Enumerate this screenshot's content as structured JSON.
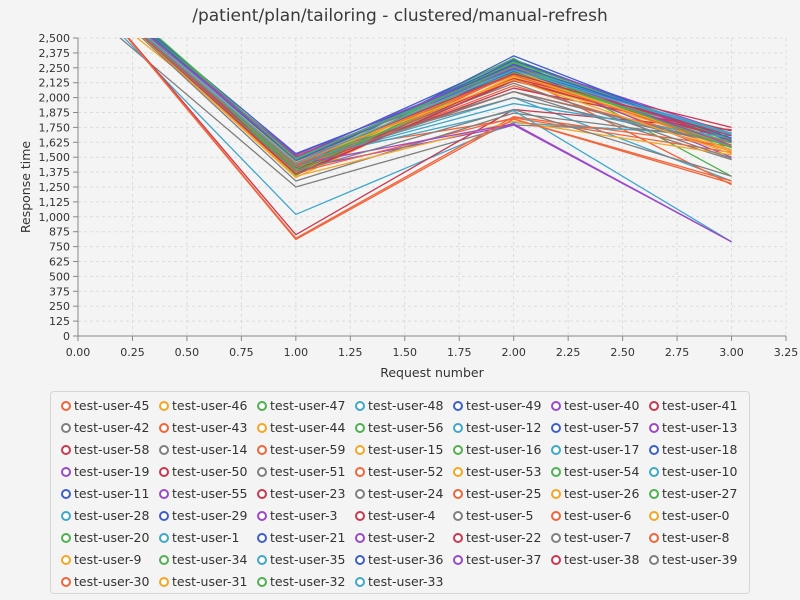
{
  "chart_data": {
    "type": "line",
    "title": "/patient/plan/tailoring - clustered/manual-refresh",
    "xlabel": "Request number",
    "ylabel": "Response time",
    "xlim": [
      0,
      3.25
    ],
    "ylim": [
      0,
      2500
    ],
    "x_ticks": [
      "0.00",
      "0.25",
      "0.50",
      "0.75",
      "1.00",
      "1.25",
      "1.50",
      "1.75",
      "2.00",
      "2.25",
      "2.50",
      "2.75",
      "3.00",
      "3.25"
    ],
    "y_ticks": [
      "0",
      "125",
      "250",
      "375",
      "500",
      "625",
      "750",
      "875",
      "1,000",
      "1,125",
      "1,250",
      "1,375",
      "1,500",
      "1,625",
      "1,750",
      "1,875",
      "2,000",
      "2,125",
      "2,250",
      "2,375",
      "2,500"
    ],
    "grid": true,
    "legend_placement": "bottom",
    "x": [
      0,
      1,
      2,
      3
    ],
    "series": [
      {
        "name": "test-user-45",
        "color": "#f2643a",
        "values": [
          3000,
          1400,
          2100,
          1550
        ]
      },
      {
        "name": "test-user-46",
        "color": "#f5a623",
        "values": [
          2900,
          1430,
          2150,
          1600
        ]
      },
      {
        "name": "test-user-47",
        "color": "#4fb04f",
        "values": [
          3100,
          1380,
          2280,
          1600
        ]
      },
      {
        "name": "test-user-48",
        "color": "#3fa7c9",
        "values": [
          3000,
          1450,
          2000,
          1300
        ]
      },
      {
        "name": "test-user-49",
        "color": "#3d5fc9",
        "values": [
          3050,
          1500,
          2320,
          1650
        ]
      },
      {
        "name": "test-user-40",
        "color": "#9b48c9",
        "values": [
          3000,
          1470,
          2300,
          1700
        ]
      },
      {
        "name": "test-user-41",
        "color": "#c9384f",
        "values": [
          2950,
          1510,
          2200,
          1750
        ]
      },
      {
        "name": "test-user-42",
        "color": "#7f7f7f",
        "values": [
          2800,
          1250,
          1770,
          1700
        ]
      },
      {
        "name": "test-user-43",
        "color": "#f2643a",
        "values": [
          3000,
          1360,
          2200,
          1270
        ]
      },
      {
        "name": "test-user-44",
        "color": "#f5a623",
        "values": [
          3000,
          1330,
          2180,
          1550
        ]
      },
      {
        "name": "test-user-56",
        "color": "#4fb04f",
        "values": [
          3100,
          1440,
          2330,
          1340
        ]
      },
      {
        "name": "test-user-12",
        "color": "#3fa7c9",
        "values": [
          2900,
          1020,
          1790,
          1680
        ]
      },
      {
        "name": "test-user-57",
        "color": "#3d5fc9",
        "values": [
          3050,
          1410,
          2350,
          1640
        ]
      },
      {
        "name": "test-user-13",
        "color": "#9b48c9",
        "values": [
          3000,
          1500,
          2230,
          1500
        ]
      },
      {
        "name": "test-user-58",
        "color": "#c9384f",
        "values": [
          3000,
          1350,
          2150,
          1650
        ]
      },
      {
        "name": "test-user-14",
        "color": "#7f7f7f",
        "values": [
          3000,
          1460,
          2050,
          1480
        ]
      },
      {
        "name": "test-user-59",
        "color": "#f2643a",
        "values": [
          3000,
          1520,
          1820,
          1280
        ]
      },
      {
        "name": "test-user-15",
        "color": "#f5a623",
        "values": [
          3000,
          1390,
          2250,
          1600
        ]
      },
      {
        "name": "test-user-16",
        "color": "#4fb04f",
        "values": [
          3100,
          1420,
          2210,
          1660
        ]
      },
      {
        "name": "test-user-17",
        "color": "#3fa7c9",
        "values": [
          3000,
          1490,
          2270,
          1560
        ]
      },
      {
        "name": "test-user-18",
        "color": "#3d5fc9",
        "values": [
          3050,
          1460,
          2220,
          1700
        ]
      },
      {
        "name": "test-user-19",
        "color": "#9b48c9",
        "values": [
          3000,
          1400,
          1770,
          790
        ]
      },
      {
        "name": "test-user-50",
        "color": "#c9384f",
        "values": [
          3000,
          850,
          1900,
          1730
        ]
      },
      {
        "name": "test-user-51",
        "color": "#7f7f7f",
        "values": [
          3000,
          1500,
          2000,
          1600
        ]
      },
      {
        "name": "test-user-52",
        "color": "#f2643a",
        "values": [
          3000,
          1370,
          1830,
          1540
        ]
      },
      {
        "name": "test-user-53",
        "color": "#f5a623",
        "values": [
          3000,
          1370,
          2170,
          1620
        ]
      },
      {
        "name": "test-user-54",
        "color": "#4fb04f",
        "values": [
          3100,
          1470,
          2290,
          1590
        ]
      },
      {
        "name": "test-user-10",
        "color": "#3fa7c9",
        "values": [
          3000,
          1430,
          2240,
          1680
        ]
      },
      {
        "name": "test-user-11",
        "color": "#3d5fc9",
        "values": [
          3050,
          1450,
          2310,
          1630
        ]
      },
      {
        "name": "test-user-55",
        "color": "#9b48c9",
        "values": [
          3000,
          1520,
          2270,
          1580
        ]
      },
      {
        "name": "test-user-23",
        "color": "#c9384f",
        "values": [
          3000,
          1380,
          2160,
          1720
        ]
      },
      {
        "name": "test-user-24",
        "color": "#7f7f7f",
        "values": [
          3000,
          1300,
          1870,
          1640
        ]
      },
      {
        "name": "test-user-25",
        "color": "#f2643a",
        "values": [
          3000,
          820,
          1840,
          1590
        ]
      },
      {
        "name": "test-user-26",
        "color": "#f5a623",
        "values": [
          3000,
          1340,
          1800,
          1520
        ]
      },
      {
        "name": "test-user-27",
        "color": "#4fb04f",
        "values": [
          3100,
          1350,
          2260,
          1560
        ]
      },
      {
        "name": "test-user-28",
        "color": "#3fa7c9",
        "values": [
          3000,
          1470,
          1890,
          790
        ]
      },
      {
        "name": "test-user-29",
        "color": "#3d5fc9",
        "values": [
          3050,
          1420,
          2260,
          1580
        ]
      },
      {
        "name": "test-user-3",
        "color": "#9b48c9",
        "values": [
          3000,
          1480,
          2250,
          1640
        ]
      },
      {
        "name": "test-user-4",
        "color": "#c9384f",
        "values": [
          3000,
          1400,
          2080,
          1700
        ]
      },
      {
        "name": "test-user-5",
        "color": "#7f7f7f",
        "values": [
          3000,
          1430,
          2120,
          1490
        ]
      },
      {
        "name": "test-user-6",
        "color": "#f2643a",
        "values": [
          3000,
          1420,
          2050,
          1620
        ]
      },
      {
        "name": "test-user-0",
        "color": "#f5a623",
        "values": [
          3000,
          1460,
          2230,
          1560
        ]
      },
      {
        "name": "test-user-20",
        "color": "#4fb04f",
        "values": [
          3100,
          1380,
          2210,
          1620
        ]
      },
      {
        "name": "test-user-1",
        "color": "#3fa7c9",
        "values": [
          3000,
          1460,
          1950,
          1660
        ]
      },
      {
        "name": "test-user-21",
        "color": "#3d5fc9",
        "values": [
          3050,
          1530,
          2240,
          1700
        ]
      },
      {
        "name": "test-user-2",
        "color": "#9b48c9",
        "values": [
          3000,
          1440,
          1780,
          790
        ]
      },
      {
        "name": "test-user-22",
        "color": "#c9384f",
        "values": [
          3000,
          1360,
          2140,
          1660
        ]
      },
      {
        "name": "test-user-7",
        "color": "#7f7f7f",
        "values": [
          3000,
          1380,
          1900,
          1340
        ]
      },
      {
        "name": "test-user-8",
        "color": "#f2643a",
        "values": [
          3000,
          1440,
          2190,
          1590
        ]
      },
      {
        "name": "test-user-9",
        "color": "#f5a623",
        "values": [
          3000,
          1450,
          2200,
          1600
        ]
      },
      {
        "name": "test-user-34",
        "color": "#4fb04f",
        "values": [
          3100,
          1400,
          2300,
          1650
        ]
      },
      {
        "name": "test-user-35",
        "color": "#3fa7c9",
        "values": [
          3000,
          1480,
          2250,
          1700
        ]
      },
      {
        "name": "test-user-36",
        "color": "#3d5fc9",
        "values": [
          3050,
          1470,
          2280,
          1660
        ]
      },
      {
        "name": "test-user-37",
        "color": "#9b48c9",
        "values": [
          3000,
          1500,
          2250,
          1600
        ]
      },
      {
        "name": "test-user-38",
        "color": "#c9384f",
        "values": [
          3000,
          1460,
          2200,
          1680
        ]
      },
      {
        "name": "test-user-39",
        "color": "#7f7f7f",
        "values": [
          3000,
          1430,
          2050,
          1600
        ]
      },
      {
        "name": "test-user-30",
        "color": "#f2643a",
        "values": [
          3000,
          810,
          1820,
          1300
        ]
      },
      {
        "name": "test-user-31",
        "color": "#f5a623",
        "values": [
          3000,
          1460,
          2150,
          1530
        ]
      },
      {
        "name": "test-user-32",
        "color": "#4fb04f",
        "values": [
          3100,
          1490,
          2260,
          1580
        ]
      },
      {
        "name": "test-user-33",
        "color": "#3fa7c9",
        "values": [
          3000,
          1450,
          2230,
          1690
        ]
      }
    ]
  }
}
